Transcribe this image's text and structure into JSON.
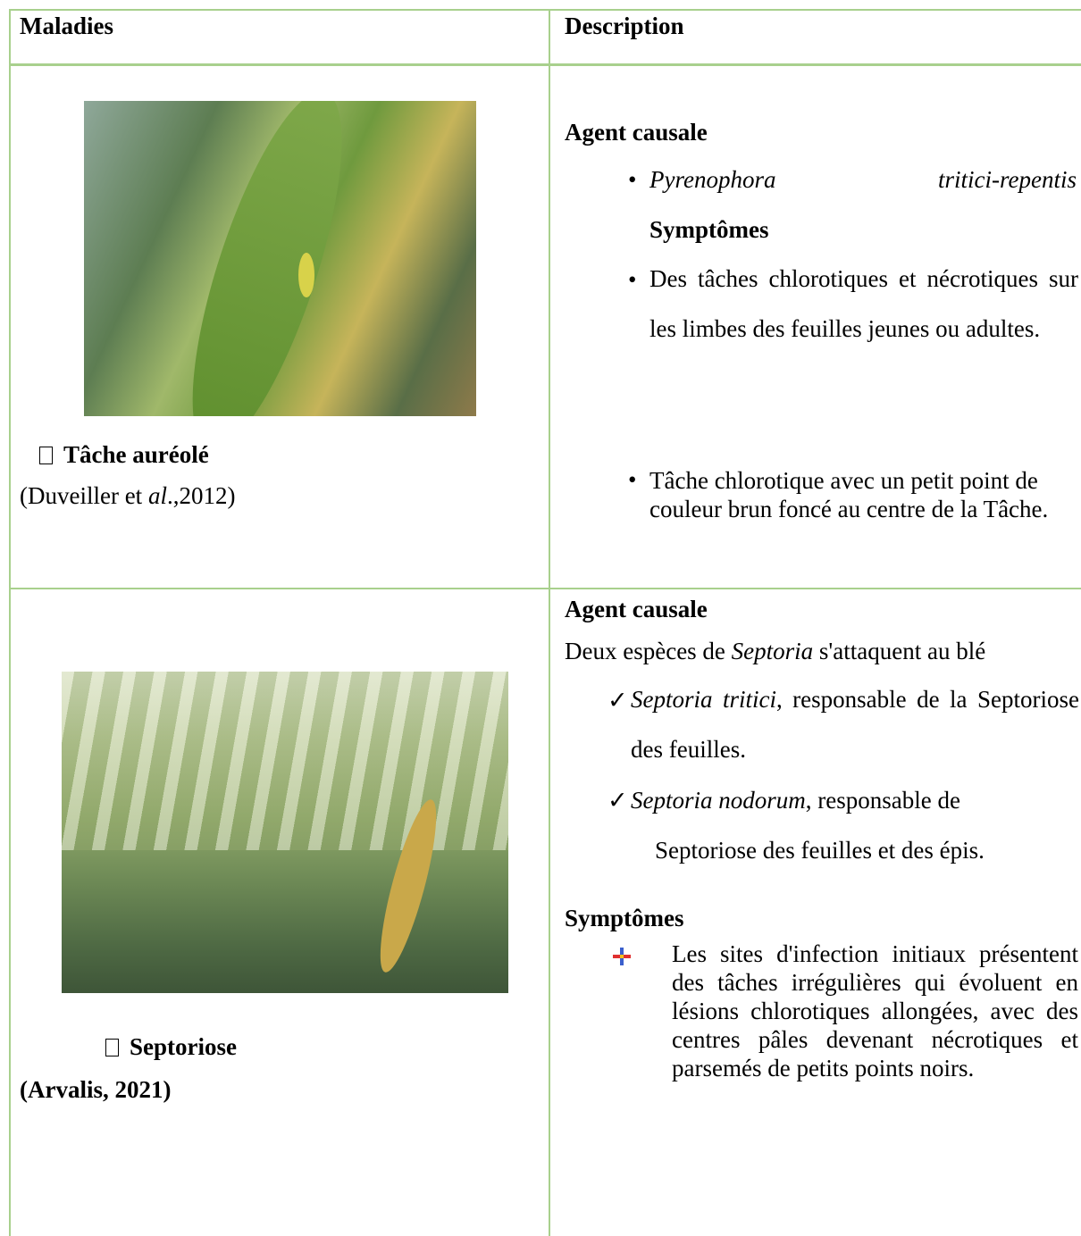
{
  "table": {
    "headers": [
      "Maladies",
      "Description"
    ],
    "rows": [
      {
        "disease": {
          "name": "Tâche auréolé",
          "source": [
            "(Duveiller et ",
            "al",
            ".,2012)"
          ]
        },
        "description": {
          "agent_heading": "Agent causale",
          "agent": [
            "Pyrenophora",
            "tritici-repentis"
          ],
          "symptoms_heading": "Symptômes",
          "symptoms": [
            "Des tâches chlorotiques et nécrotiques sur les limbes des feuilles jeunes ou adultes.",
            "Tâche chlorotique avec un petit point de couleur brun foncé au centre de la Tâche."
          ]
        }
      },
      {
        "disease": {
          "name": "Septoriose",
          "source": [
            "(Arvalis, 2021)"
          ]
        },
        "description": {
          "agent_heading": "Agent causale",
          "intro": [
            "Deux espèces de ",
            "Septoria",
            " s'attaquent au blé"
          ],
          "species": [
            {
              "name": "Septoria tritici",
              "text": ", responsable de la Septoriose des feuilles."
            },
            {
              "name": "Septoria nodorum",
              "text": ", responsable de",
              "continuation": "Septoriose des feuilles et des épis."
            }
          ],
          "symptoms_heading": "Symptômes",
          "symptoms": [
            "Les sites d'infection initiaux présentent des tâches irrégulières qui évoluent en lésions chlorotiques allongées, avec des centres pâles devenant nécrotiques et parsemés de petits points noirs."
          ]
        }
      }
    ]
  }
}
